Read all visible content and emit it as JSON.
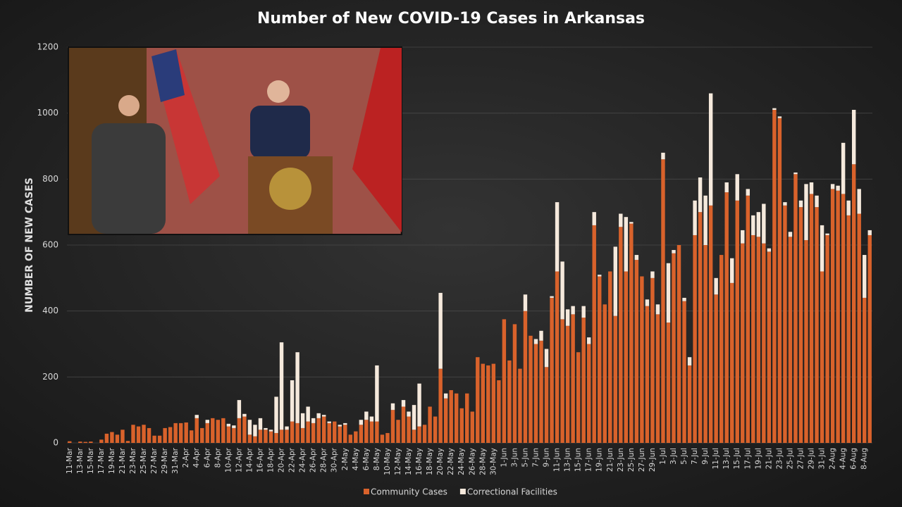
{
  "chart_data": {
    "type": "stacked_bar",
    "title": "Number of New COVID-19 Cases in Arkansas",
    "y_label": "NUMBER OF NEW CASES",
    "ylim": [
      0,
      1200
    ],
    "yticks": [
      0,
      200,
      400,
      600,
      800,
      1000,
      1200
    ],
    "grid": true,
    "legend": "bottom",
    "categories": [
      "11-Mar",
      null,
      "13-Mar",
      null,
      "15-Mar",
      null,
      "17-Mar",
      null,
      "19-Mar",
      null,
      "21-Mar",
      null,
      "23-Mar",
      null,
      "25-Mar",
      null,
      "27-Mar",
      null,
      "29-Mar",
      null,
      "31-Mar",
      null,
      "2-Apr",
      null,
      "4-Apr",
      null,
      "6-Apr",
      null,
      "8-Apr",
      null,
      "10-Apr",
      null,
      "12-Apr",
      null,
      "14-Apr",
      null,
      "16-Apr",
      null,
      "18-Apr",
      null,
      "20-Apr",
      null,
      "22-Apr",
      null,
      "24-Apr",
      null,
      "26-Apr",
      null,
      "28-Apr",
      null,
      "30-Apr",
      null,
      "2-May",
      null,
      "4-May",
      null,
      "6-May",
      null,
      "8-May",
      null,
      "10-May",
      null,
      "12-May",
      null,
      "14-May",
      null,
      "16-May",
      null,
      "18-May",
      null,
      "20-May",
      null,
      "22-May",
      null,
      "24-May",
      null,
      "26-May",
      null,
      "28-May",
      null,
      "30-May",
      null,
      "1-Jun",
      null,
      "3-Jun",
      null,
      "5-Jun",
      null,
      "7-Jun",
      null,
      "9-Jun",
      null,
      "11-Jun",
      null,
      "13-Jun",
      null,
      "15-Jun",
      null,
      "17-Jun",
      null,
      "19-Jun",
      null,
      "21-Jun",
      null,
      "23-Jun",
      null,
      "25-Jun",
      null,
      "27-Jun",
      null,
      "29-Jun",
      null,
      "1-Jul",
      null,
      "3-Jul",
      null,
      "5-Jul",
      null,
      "7-Jul",
      null,
      "9-Jul",
      null,
      "11-Jul",
      null,
      "13-Jul",
      null,
      "15-Jul",
      null,
      "17-Jul",
      null,
      "19-Jul",
      null,
      "21-Jul",
      null,
      "23-Jul",
      null,
      "25-Jul",
      null,
      "27-Jul",
      null,
      "29-Jul",
      null,
      "31-Jul",
      null,
      "2-Aug",
      null,
      "4-Aug",
      null,
      "6-Aug",
      null,
      "8-Aug",
      null
    ],
    "series": [
      {
        "name": "Community Cases",
        "color": "#d9622b",
        "values": [
          5,
          0,
          4,
          3,
          4,
          0,
          10,
          28,
          33,
          25,
          40,
          6,
          55,
          50,
          55,
          45,
          22,
          22,
          45,
          48,
          60,
          60,
          62,
          38,
          75,
          45,
          60,
          75,
          70,
          75,
          50,
          45,
          75,
          80,
          25,
          20,
          40,
          40,
          35,
          30,
          40,
          40,
          65,
          60,
          45,
          65,
          60,
          75,
          80,
          60,
          65,
          50,
          55,
          25,
          35,
          55,
          70,
          65,
          65,
          25,
          30,
          100,
          70,
          110,
          80,
          40,
          50,
          55,
          110,
          80,
          225,
          135,
          160,
          150,
          105,
          150,
          95,
          260,
          240,
          235,
          240,
          190,
          375,
          250,
          360,
          225,
          400,
          325,
          300,
          310,
          230,
          440,
          520,
          375,
          355,
          390,
          275,
          380,
          300,
          660,
          505,
          420,
          520,
          385,
          655,
          520,
          665,
          555,
          505,
          415,
          500,
          390,
          860,
          365,
          575,
          600,
          430,
          235,
          630,
          700,
          600,
          720,
          450,
          570,
          760,
          485,
          735,
          605,
          750,
          630,
          625,
          605,
          580,
          1010,
          985,
          720,
          625,
          815,
          715,
          615,
          755,
          715,
          520,
          630,
          770,
          765,
          755,
          690,
          845,
          695,
          440,
          630
        ]
      },
      {
        "name": "Correctional Facilities",
        "color": "#f5e9dc",
        "values": [
          0,
          0,
          0,
          0,
          0,
          0,
          0,
          0,
          0,
          0,
          0,
          0,
          0,
          0,
          0,
          0,
          0,
          0,
          0,
          0,
          0,
          0,
          0,
          0,
          10,
          0,
          10,
          0,
          0,
          0,
          8,
          8,
          55,
          8,
          45,
          35,
          35,
          5,
          5,
          110,
          265,
          10,
          125,
          215,
          45,
          45,
          15,
          15,
          5,
          5,
          0,
          5,
          5,
          0,
          0,
          15,
          25,
          15,
          170,
          0,
          0,
          20,
          0,
          20,
          15,
          75,
          130,
          0,
          0,
          0,
          230,
          15,
          0,
          0,
          0,
          0,
          0,
          0,
          0,
          0,
          0,
          0,
          0,
          0,
          0,
          0,
          50,
          0,
          15,
          30,
          55,
          5,
          210,
          175,
          50,
          25,
          0,
          35,
          20,
          40,
          5,
          0,
          0,
          210,
          40,
          165,
          5,
          15,
          0,
          20,
          20,
          30,
          20,
          180,
          10,
          0,
          10,
          25,
          105,
          105,
          150,
          340,
          50,
          0,
          30,
          75,
          80,
          40,
          20,
          60,
          75,
          120,
          10,
          5,
          5,
          10,
          15,
          5,
          20,
          170,
          35,
          35,
          140,
          5,
          15,
          15,
          155,
          45,
          165,
          75,
          130,
          15
        ]
      }
    ]
  }
}
